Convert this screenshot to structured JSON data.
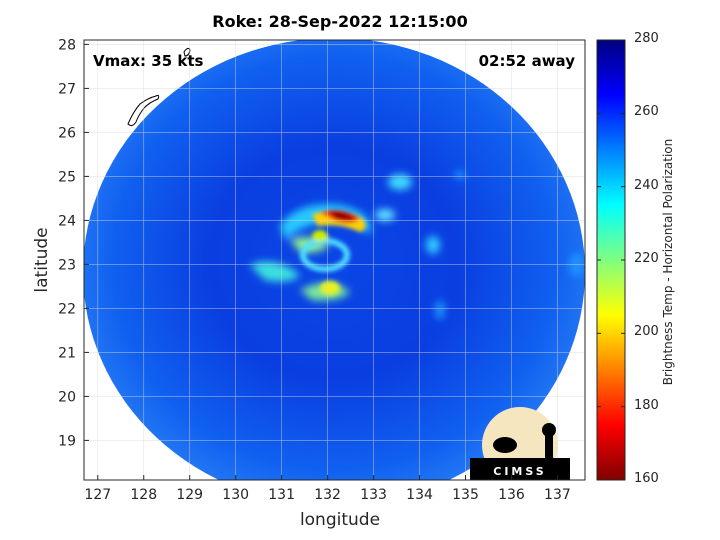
{
  "title": "Roke: 28-Sep-2022 12:15:00",
  "annotations": {
    "vmax": "Vmax: 35 kts",
    "time_away": "02:52 away"
  },
  "logo_text": "CIMSS",
  "colorbar": {
    "label": "Brightness Temp - Horizontal Polarization",
    "ticks": [
      "280",
      "260",
      "240",
      "220",
      "200",
      "180",
      "160"
    ],
    "range": [
      160,
      280
    ],
    "colormap": [
      "#800000",
      "#ff0000",
      "#ff8000",
      "#ffff00",
      "#80ff80",
      "#00ffff",
      "#0080ff",
      "#0000ff",
      "#000080"
    ]
  },
  "map": {
    "xlabel": "longitude",
    "ylabel": "latitude",
    "xticks": [
      "127",
      "128",
      "129",
      "130",
      "131",
      "132",
      "133",
      "134",
      "135",
      "136",
      "137"
    ],
    "yticks": [
      "28",
      "27",
      "26",
      "25",
      "24",
      "23",
      "22",
      "21",
      "20",
      "19"
    ],
    "xlim": [
      126.7,
      137.6
    ],
    "ylim": [
      18.1,
      28.1
    ],
    "storm_center": {
      "lon": 132.3,
      "lat": 23.8
    }
  }
}
